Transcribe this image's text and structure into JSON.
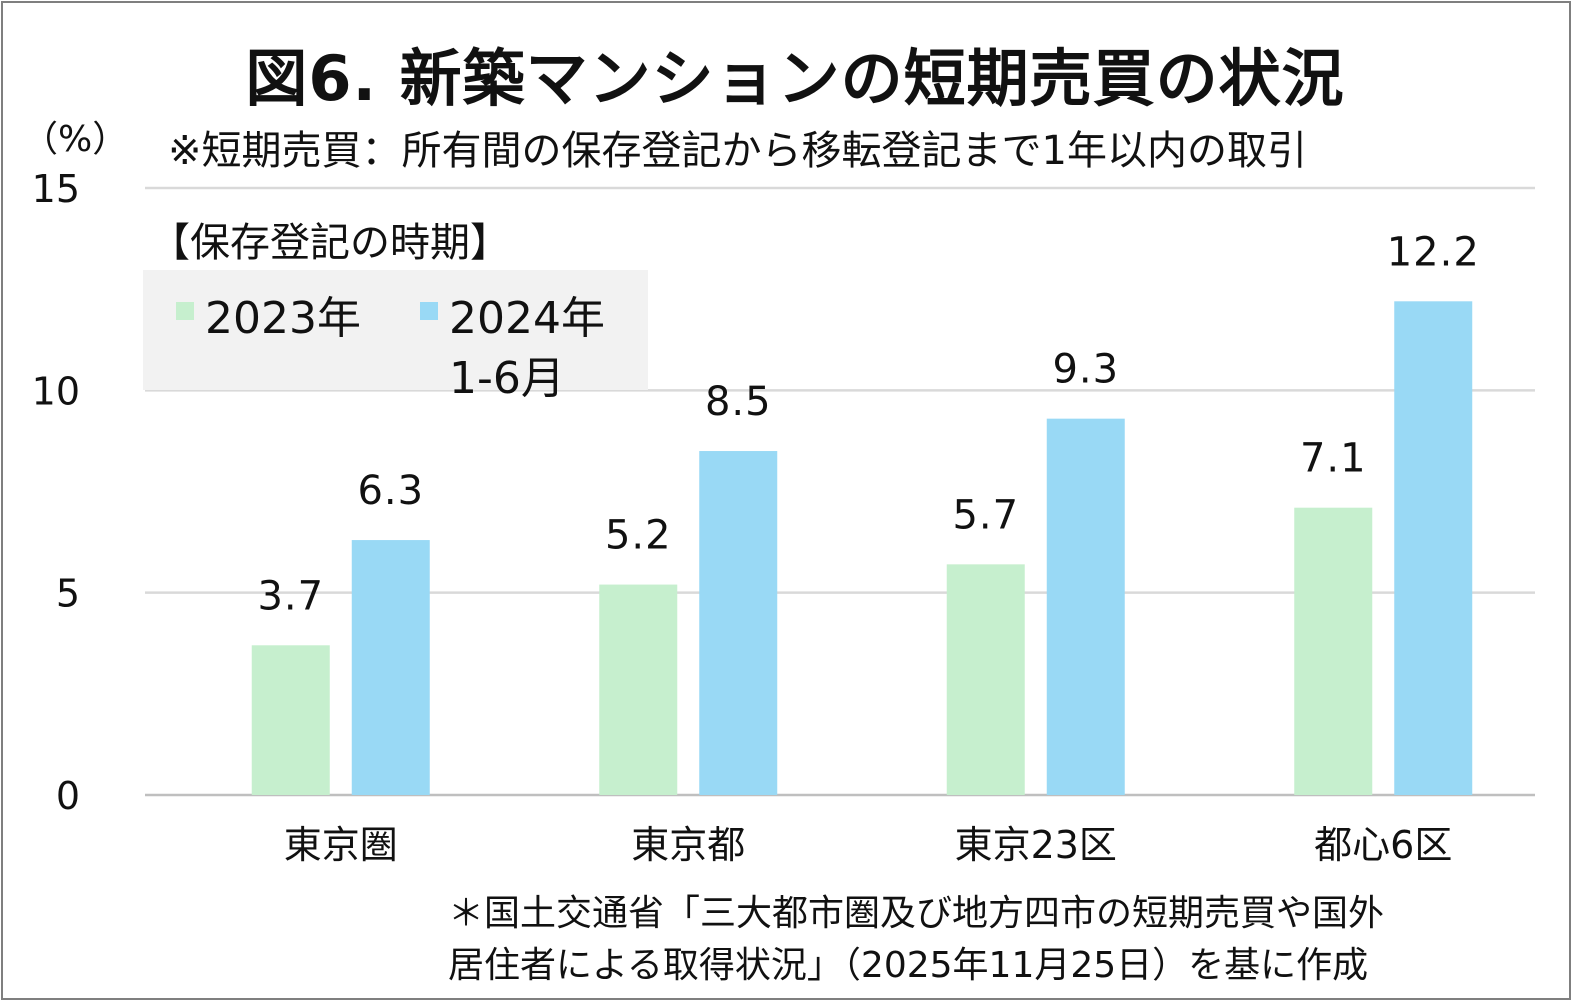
{
  "title": "図6. 新築マンションの短期売買の状況",
  "subtitle": "※短期売買：所有間の保存登記から移転登記まで1年以内の取引",
  "unit_label": "（%）",
  "legend": {
    "title": "【保存登記の時期】",
    "items": [
      {
        "label": "2023年",
        "color": "#c6efce"
      },
      {
        "label": "2024年",
        "label_line2": "1-6月",
        "color": "#99d9f5"
      }
    ]
  },
  "source": {
    "line1": "＊国土交通省「三大都市圏及び地方四市の短期売買や国外",
    "line2": "居住者による取得状況」（2025年11月25日）を基に作成"
  },
  "chart_data": {
    "type": "bar",
    "categories": [
      "東京圏",
      "東京都",
      "東京23区",
      "都心6区"
    ],
    "series": [
      {
        "name": "2023年",
        "values": [
          3.7,
          5.2,
          5.7,
          7.1
        ],
        "color": "#c6efce",
        "labels": [
          "3.7",
          "5.2",
          "5.7",
          "7.1"
        ]
      },
      {
        "name": "2024年1-6月",
        "values": [
          6.3,
          8.5,
          9.3,
          12.2
        ],
        "color": "#99d9f5",
        "labels": [
          "6.3",
          "8.5",
          "9.3",
          "12.2"
        ]
      }
    ],
    "yticks": [
      "0",
      "5",
      "10",
      "15"
    ],
    "ylim": [
      0,
      15
    ],
    "grid": true,
    "legend_position": "top-left"
  }
}
